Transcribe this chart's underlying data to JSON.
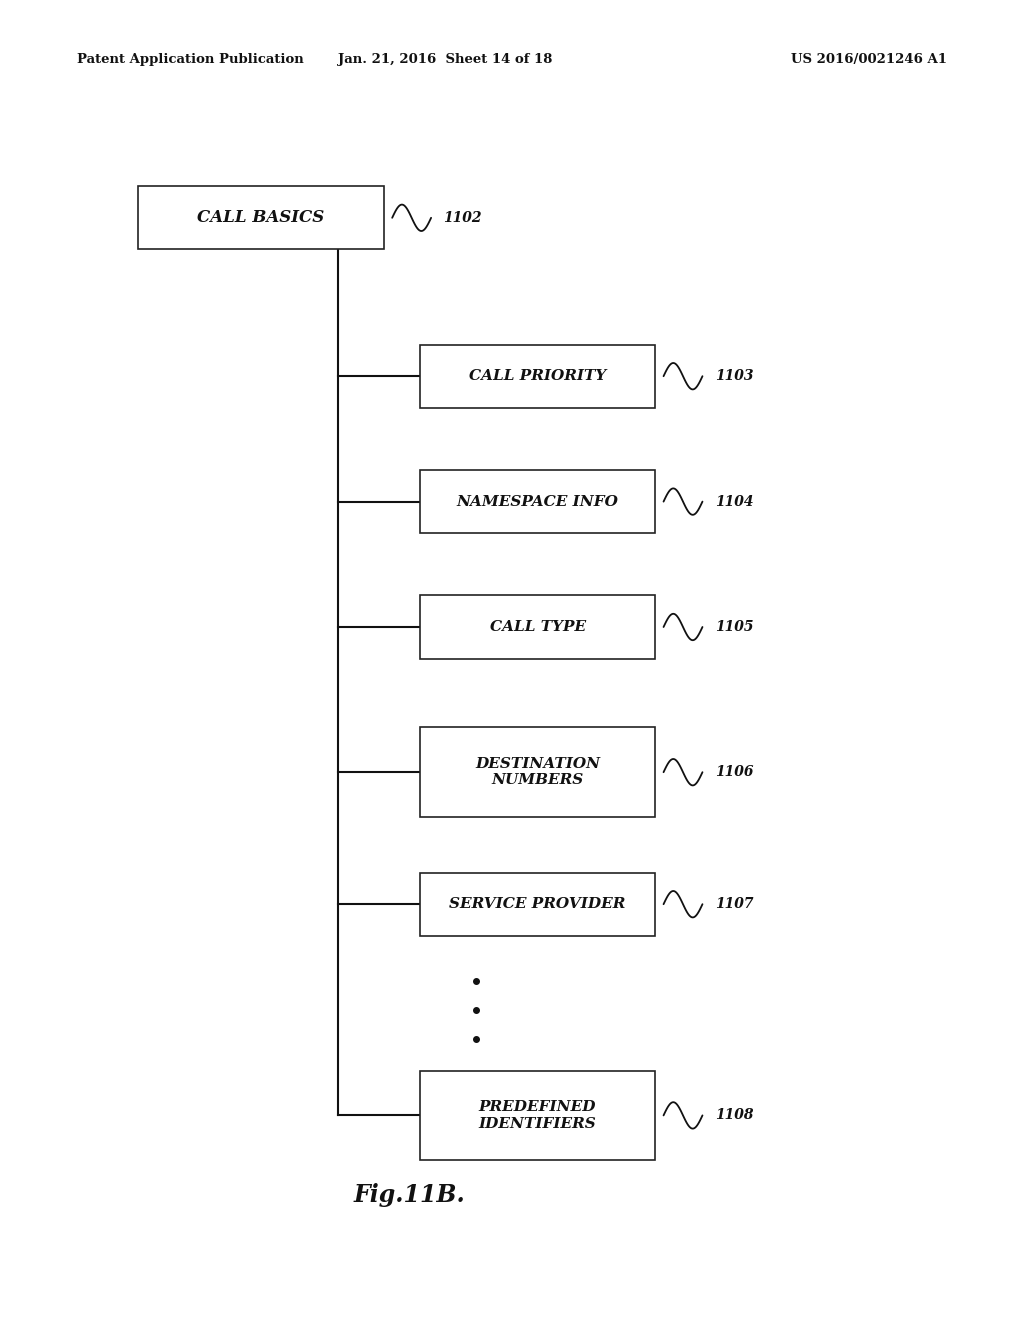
{
  "header_left": "Patent Application Publication",
  "header_mid": "Jan. 21, 2016  Sheet 14 of 18",
  "header_right": "US 2016/0021246 A1",
  "figure_label": "Fig.11B.",
  "root_box": {
    "label": "CALL BASICS",
    "ref": "1102"
  },
  "child_boxes": [
    {
      "label": "CALL PRIORITY",
      "ref": "1103"
    },
    {
      "label": "NAMESPACE INFO",
      "ref": "1104"
    },
    {
      "label": "CALL TYPE",
      "ref": "1105"
    },
    {
      "label": "DESTINATION\nNUMBERS",
      "ref": "1106"
    },
    {
      "label": "SERVICE PROVIDER",
      "ref": "1107"
    },
    {
      "label": "PREDEFINED\nIDENTIFIERS",
      "ref": "1108"
    }
  ],
  "background_color": "#ffffff",
  "box_color": "#ffffff",
  "box_edge_color": "#222222",
  "text_color": "#111111",
  "line_color": "#111111"
}
